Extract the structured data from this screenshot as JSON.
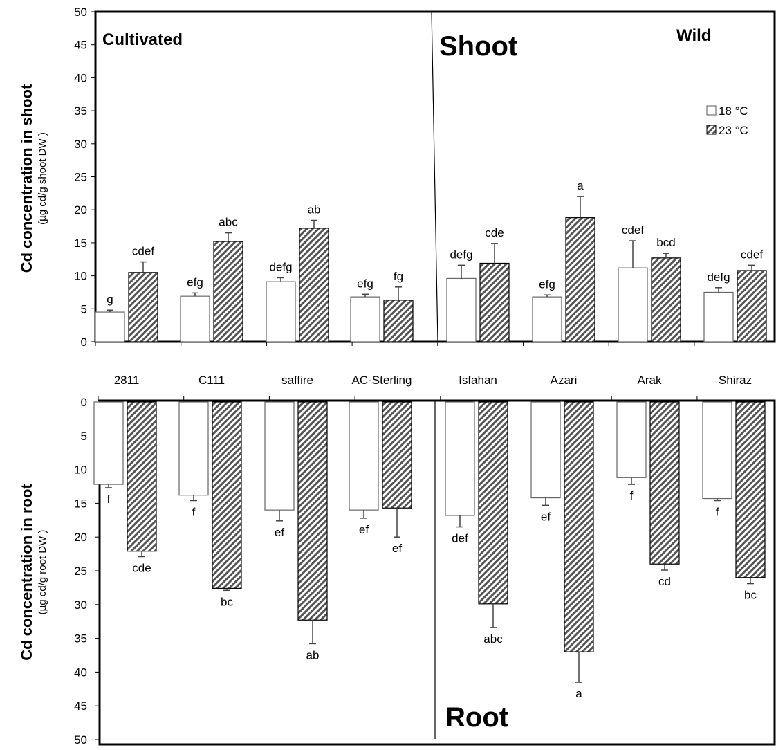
{
  "chart_data": [
    {
      "type": "bar",
      "panel_title": "Shoot",
      "group_labels": {
        "left": "Cultivated",
        "right": "Wild"
      },
      "ylabel": "Cd concentration in shoot",
      "ylabel_sub": "(µg cd/g shoot DW )",
      "ylim": [
        0,
        50
      ],
      "yticks": [
        0,
        5,
        10,
        15,
        20,
        25,
        30,
        35,
        40,
        45,
        50
      ],
      "categories": [
        "2811",
        "C111",
        "saffire",
        "AC-Sterling",
        "Isfahan",
        "Azari",
        "Arak",
        "Shiraz"
      ],
      "series": [
        {
          "name": "18 °C",
          "values": [
            4.5,
            6.9,
            9.1,
            6.8,
            9.6,
            6.8,
            11.2,
            7.5
          ],
          "errors": [
            0.3,
            0.5,
            0.6,
            0.4,
            2.0,
            0.3,
            4.1,
            0.7
          ],
          "labels": [
            "g",
            "efg",
            "defg",
            "efg",
            "defg",
            "efg",
            "cdef",
            "defg"
          ]
        },
        {
          "name": "23 °C",
          "values": [
            10.5,
            15.2,
            17.2,
            6.3,
            11.9,
            18.8,
            12.7,
            10.8
          ],
          "errors": [
            1.6,
            1.3,
            1.2,
            2.0,
            3.0,
            3.2,
            0.7,
            0.8
          ],
          "labels": [
            "cdef",
            "abc",
            "ab",
            "fg",
            "cde",
            "a",
            "bcd",
            "cdef"
          ]
        }
      ],
      "legend": {
        "placement": "top-right",
        "entries": [
          "18 °C",
          "23 °C"
        ]
      },
      "grid": false
    },
    {
      "type": "bar",
      "panel_title": "Root",
      "ylabel": "Cd concentration in root",
      "ylabel_sub": "(µg cd/g  root DW )",
      "ylim": [
        0,
        50
      ],
      "y_inverted": true,
      "yticks": [
        0,
        5,
        10,
        15,
        20,
        25,
        30,
        35,
        40,
        45,
        50
      ],
      "categories": [
        "2811",
        "C111",
        "saffire",
        "AC-Sterling",
        "Isfahan",
        "Azari",
        "Arak",
        "Shiraz"
      ],
      "series": [
        {
          "name": "18 °C",
          "values": [
            12.2,
            13.8,
            16.0,
            16.0,
            16.8,
            14.2,
            11.2,
            14.3
          ],
          "errors": [
            0.5,
            0.8,
            1.6,
            1.2,
            1.7,
            1.1,
            1.0,
            0.3
          ],
          "labels": [
            "f",
            "f",
            "ef",
            "ef",
            "def",
            "ef",
            "f",
            "f"
          ]
        },
        {
          "name": "23 °C",
          "values": [
            22.1,
            27.6,
            32.3,
            15.7,
            29.9,
            37.0,
            24.0,
            26.0
          ],
          "errors": [
            0.8,
            0.3,
            3.5,
            4.3,
            3.5,
            4.5,
            0.9,
            0.9
          ],
          "labels": [
            "cde",
            "bc",
            "ab",
            "ef",
            "abc",
            "a",
            "cd",
            "bc"
          ]
        }
      ],
      "grid": false
    }
  ]
}
